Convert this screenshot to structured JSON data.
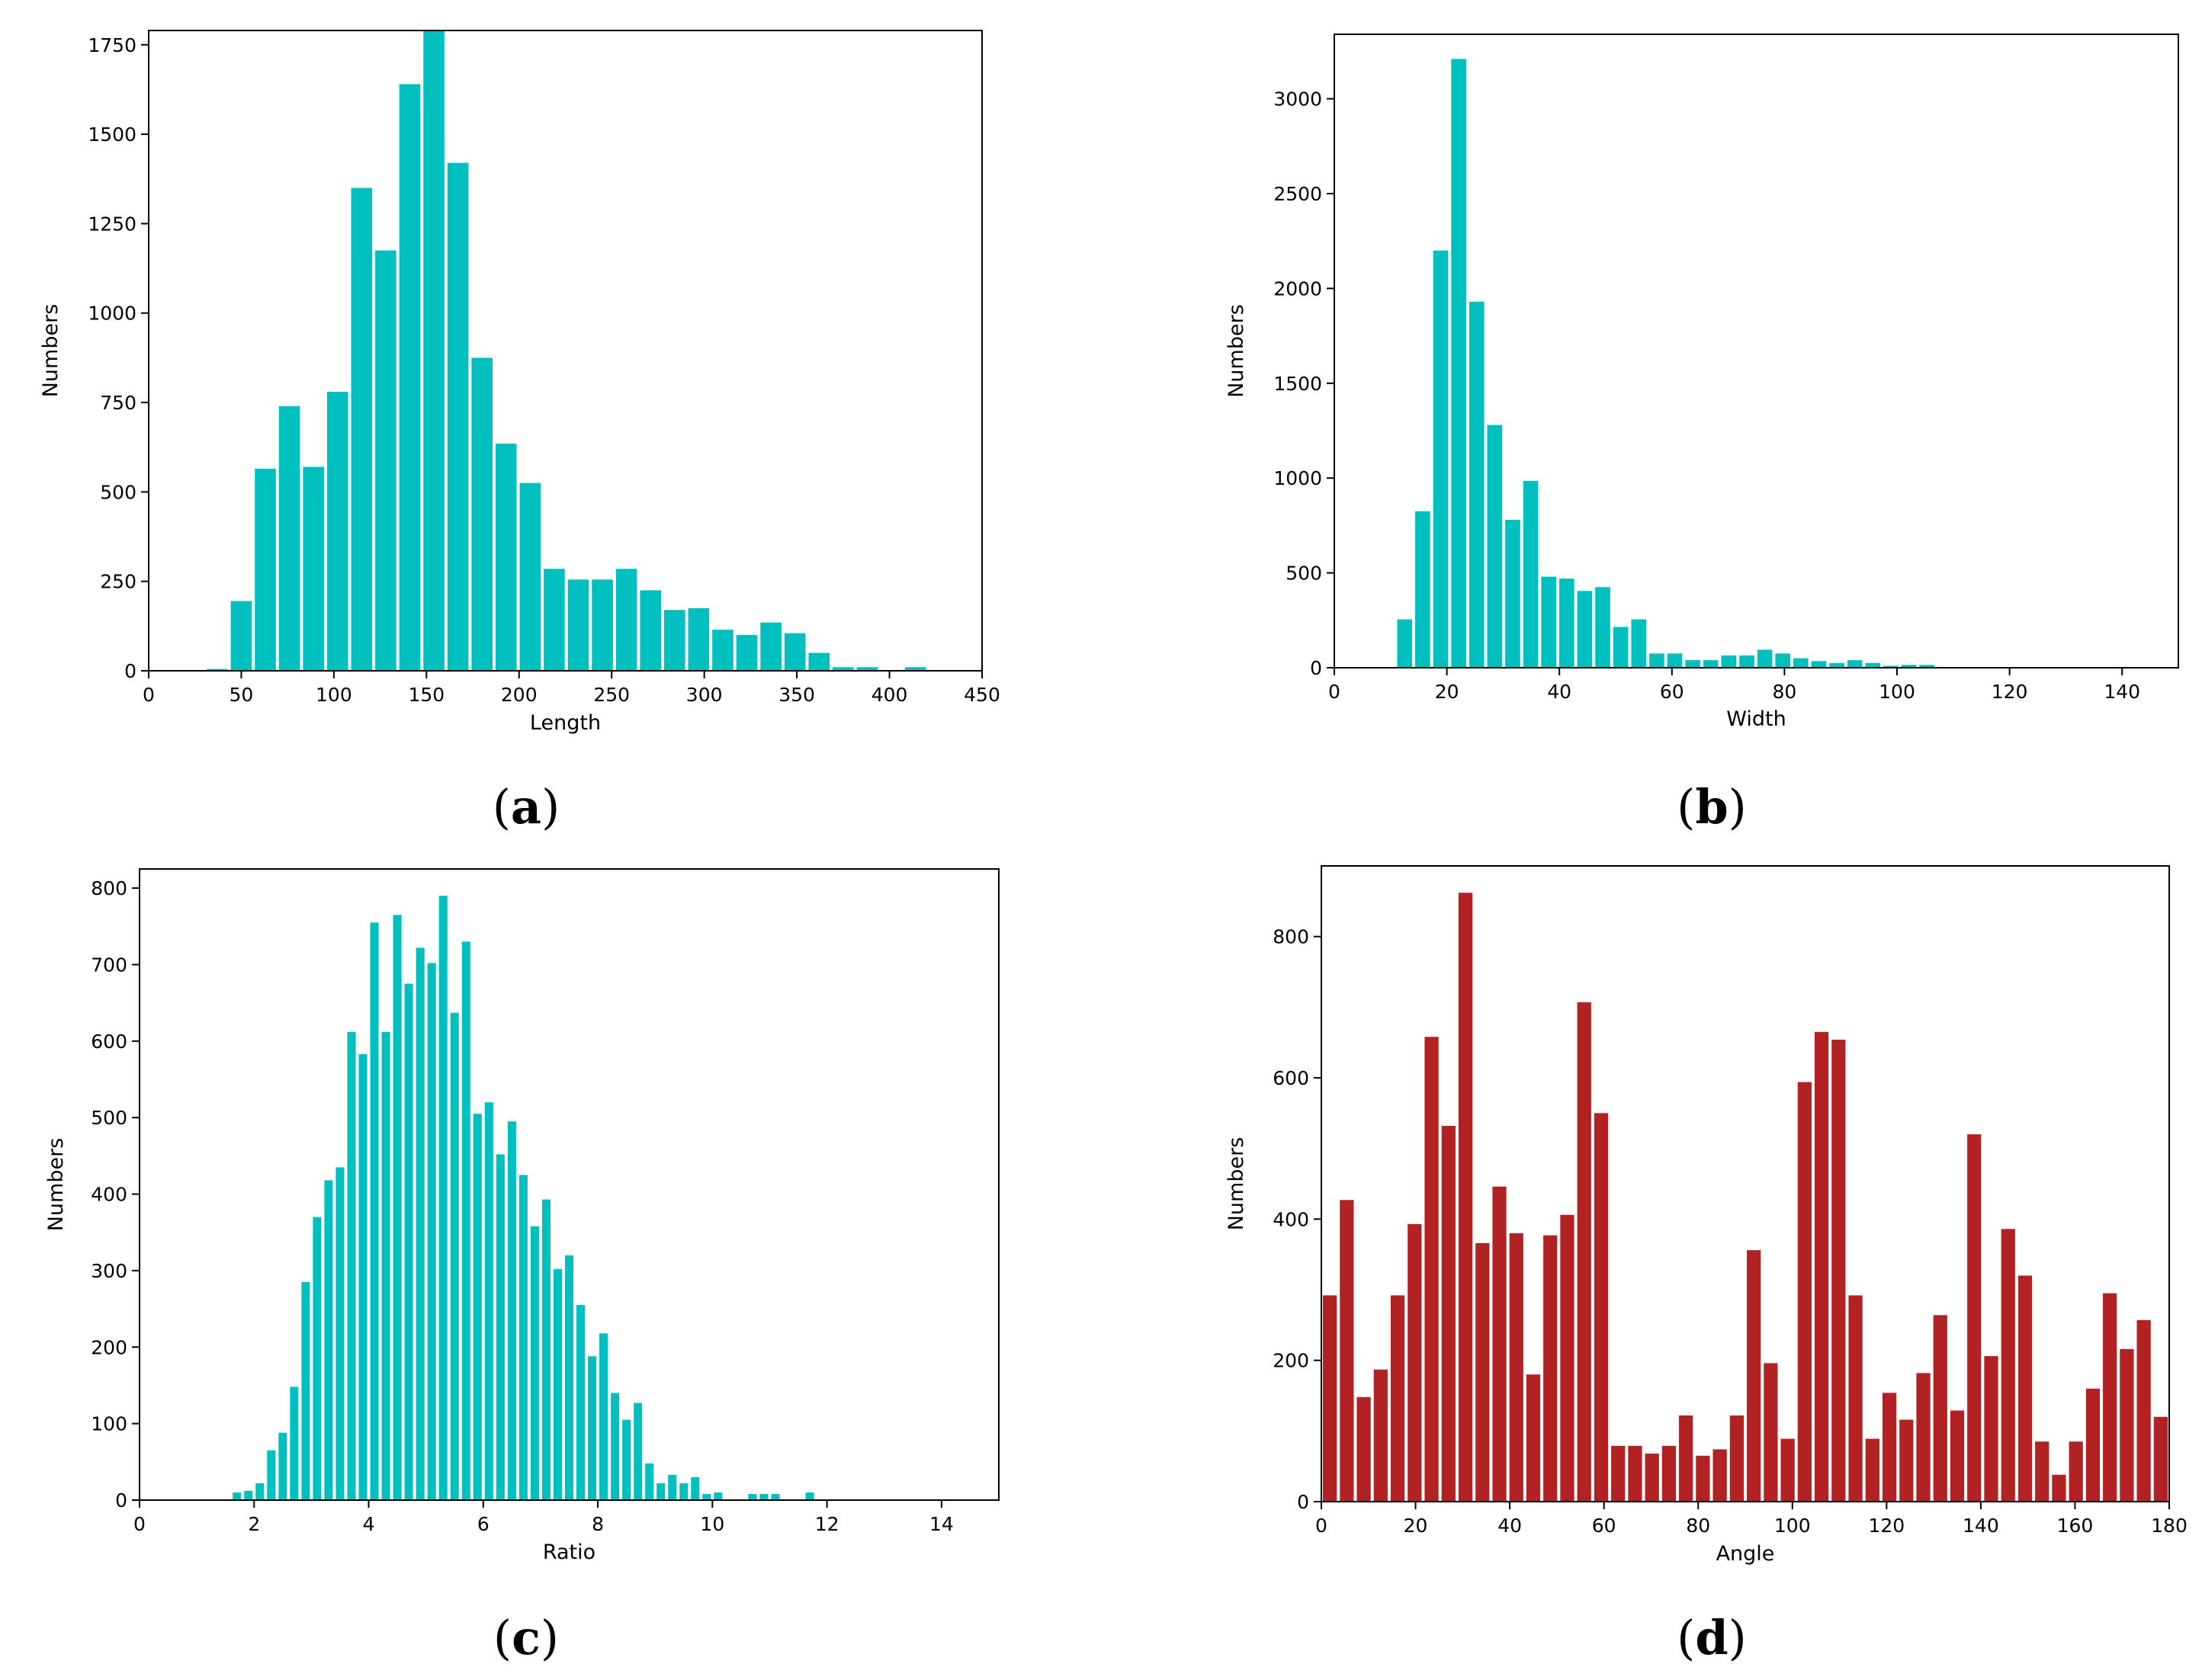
{
  "chart_data": [
    {
      "id": "a",
      "type": "bar",
      "caption": "a",
      "xlabel": "Length",
      "ylabel": "Numbers",
      "color": "#00BFBF",
      "xlim": [
        0,
        450
      ],
      "ylim": [
        0,
        1790
      ],
      "xticks": [
        0,
        50,
        100,
        150,
        200,
        250,
        300,
        350,
        400,
        450
      ],
      "yticks": [
        0,
        250,
        500,
        750,
        1000,
        1250,
        1500,
        1750
      ],
      "bin_width": 13,
      "x": [
        37,
        50,
        63,
        76,
        89,
        102,
        115,
        128,
        141,
        154,
        167,
        180,
        193,
        206,
        219,
        232,
        245,
        258,
        271,
        284,
        297,
        310,
        323,
        336,
        349,
        362,
        375,
        388,
        401,
        414
      ],
      "values": [
        5,
        195,
        565,
        740,
        570,
        780,
        1350,
        1175,
        1640,
        1790,
        1420,
        875,
        635,
        525,
        285,
        255,
        255,
        285,
        225,
        170,
        175,
        115,
        100,
        135,
        105,
        50,
        10,
        10,
        0,
        10
      ]
    },
    {
      "id": "b",
      "type": "bar",
      "caption": "b",
      "xlabel": "Width",
      "ylabel": "Numbers",
      "color": "#00BFBF",
      "xlim": [
        0,
        150
      ],
      "ylim": [
        0,
        3340
      ],
      "xticks": [
        0,
        20,
        40,
        60,
        80,
        100,
        120,
        140
      ],
      "yticks": [
        0,
        500,
        1000,
        1500,
        2000,
        2500,
        3000
      ],
      "bin_width": 3.2,
      "x": [
        12.5,
        15.7,
        18.9,
        22.1,
        25.3,
        28.5,
        31.7,
        34.9,
        38.1,
        41.3,
        44.5,
        47.7,
        50.9,
        54.1,
        57.3,
        60.5,
        63.7,
        66.9,
        70.1,
        73.3,
        76.5,
        79.7,
        82.9,
        86.1,
        89.3,
        92.5,
        95.7,
        98.9,
        102.1,
        105.3
      ],
      "values": [
        255,
        825,
        2200,
        3210,
        1930,
        1280,
        780,
        985,
        480,
        470,
        405,
        425,
        215,
        255,
        75,
        75,
        40,
        40,
        65,
        65,
        95,
        75,
        50,
        35,
        25,
        40,
        25,
        10,
        15,
        15
      ]
    },
    {
      "id": "c",
      "type": "bar",
      "caption": "c",
      "xlabel": "Ratio",
      "ylabel": "Numbers",
      "color": "#00BFBF",
      "xlim": [
        0,
        15
      ],
      "ylim": [
        0,
        825
      ],
      "xticks": [
        0,
        2,
        4,
        6,
        8,
        10,
        12,
        14
      ],
      "yticks": [
        0,
        100,
        200,
        300,
        400,
        500,
        600,
        700,
        800
      ],
      "bin_width": 0.2,
      "x": [
        1.7,
        1.9,
        2.1,
        2.3,
        2.5,
        2.7,
        2.9,
        3.1,
        3.3,
        3.5,
        3.7,
        3.9,
        4.1,
        4.3,
        4.5,
        4.7,
        4.9,
        5.1,
        5.3,
        5.5,
        5.7,
        5.9,
        6.1,
        6.3,
        6.5,
        6.7,
        6.9,
        7.1,
        7.3,
        7.5,
        7.7,
        7.9,
        8.1,
        8.3,
        8.5,
        8.7,
        8.9,
        9.1,
        9.3,
        9.5,
        9.7,
        9.9,
        10.1,
        10.3,
        10.5,
        10.7,
        10.9,
        11.1,
        11.3,
        11.5,
        11.7,
        11.9,
        12.1,
        12.3
      ],
      "values": [
        10,
        12,
        22,
        65,
        88,
        148,
        285,
        370,
        418,
        435,
        612,
        583,
        755,
        612,
        765,
        675,
        722,
        702,
        790,
        637,
        730,
        505,
        520,
        452,
        495,
        425,
        358,
        393,
        302,
        320,
        255,
        188,
        218,
        140,
        105,
        127,
        48,
        22,
        33,
        22,
        30,
        8,
        10,
        0,
        0,
        8,
        8,
        8,
        0,
        0,
        10,
        0,
        0,
        0
      ]
    },
    {
      "id": "d",
      "type": "bar",
      "caption": "d",
      "xlabel": "Angle",
      "ylabel": "Numbers",
      "color": "#B22222",
      "xlim": [
        0,
        180
      ],
      "ylim": [
        0,
        900
      ],
      "xticks": [
        0,
        20,
        40,
        60,
        80,
        100,
        120,
        140,
        160,
        180
      ],
      "yticks": [
        0,
        200,
        400,
        600,
        800
      ],
      "bin_width": 3.6,
      "x": [
        1.8,
        5.4,
        9.0,
        12.6,
        16.2,
        19.8,
        23.4,
        27.0,
        30.6,
        34.2,
        37.8,
        41.4,
        45.0,
        48.6,
        52.2,
        55.8,
        59.4,
        63.0,
        66.6,
        70.2,
        73.8,
        77.4,
        81.0,
        84.6,
        88.2,
        91.8,
        95.4,
        99.0,
        102.6,
        106.2,
        109.8,
        113.4,
        117.0,
        120.6,
        124.2,
        127.8,
        131.4,
        135.0,
        138.6,
        142.2,
        145.8,
        149.4,
        153.0,
        156.6,
        160.2,
        163.8,
        167.4,
        171.0,
        174.6,
        178.2
      ],
      "values": [
        292,
        427,
        148,
        187,
        292,
        393,
        658,
        532,
        862,
        366,
        446,
        380,
        180,
        377,
        406,
        707,
        550,
        79,
        79,
        68,
        79,
        122,
        65,
        74,
        122,
        356,
        196,
        89,
        594,
        665,
        654,
        292,
        89,
        154,
        116,
        182,
        264,
        129,
        520,
        206,
        386,
        320,
        85,
        38,
        85,
        160,
        295,
        216,
        257,
        120
      ]
    }
  ]
}
